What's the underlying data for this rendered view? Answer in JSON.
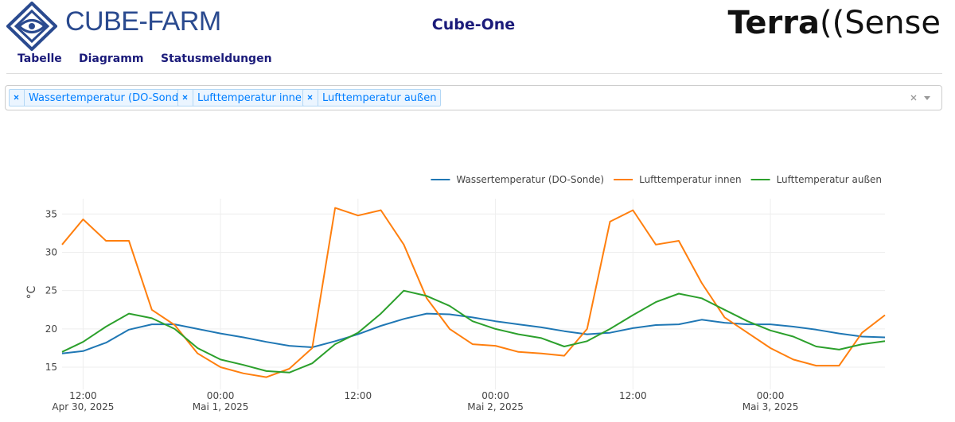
{
  "header": {
    "logo": "CUBE-FARM",
    "title": "Cube-One",
    "brand_bold": "Terra",
    "brand_rest": "((Sense"
  },
  "tabs": [
    "Tabelle",
    "Diagramm",
    "Statusmeldungen"
  ],
  "active_tab": 1,
  "filter": {
    "chips": [
      "Wassertemperatur (DO-Sonde)",
      "Lufttemperatur innen",
      "Lufttemperatur außen"
    ]
  },
  "chart_data": {
    "type": "line",
    "y_label": "°C",
    "legend": "top-right",
    "grid": true,
    "x": [
      "2025-04-30T10:10",
      "2025-04-30T12:00",
      "2025-04-30T14:00",
      "2025-04-30T16:00",
      "2025-04-30T18:00",
      "2025-04-30T20:00",
      "2025-04-30T22:00",
      "2025-05-01T00:00",
      "2025-05-01T02:00",
      "2025-05-01T04:00",
      "2025-05-01T06:00",
      "2025-05-01T08:00",
      "2025-05-01T10:00",
      "2025-05-01T12:00",
      "2025-05-01T14:00",
      "2025-05-01T16:00",
      "2025-05-01T18:00",
      "2025-05-01T20:00",
      "2025-05-01T22:00",
      "2025-05-02T00:00",
      "2025-05-02T02:00",
      "2025-05-02T04:00",
      "2025-05-02T06:00",
      "2025-05-02T08:00",
      "2025-05-02T10:00",
      "2025-05-02T12:00",
      "2025-05-02T14:00",
      "2025-05-02T16:00",
      "2025-05-02T18:00",
      "2025-05-02T20:00",
      "2025-05-02T22:00",
      "2025-05-03T00:00",
      "2025-05-03T02:00",
      "2025-05-03T04:00",
      "2025-05-03T06:00",
      "2025-05-03T08:00",
      "2025-05-03T10:00"
    ],
    "series": [
      {
        "name": "Wassertemperatur (DO-Sonde)",
        "color": "#1f77b4",
        "values": [
          16.8,
          17.1,
          18.2,
          19.9,
          20.6,
          20.6,
          20.0,
          19.4,
          18.9,
          18.3,
          17.8,
          17.6,
          18.4,
          19.3,
          20.4,
          21.3,
          22.0,
          21.9,
          21.5,
          21.0,
          20.6,
          20.2,
          19.7,
          19.3,
          19.5,
          20.1,
          20.5,
          20.6,
          21.2,
          20.8,
          20.6,
          20.6,
          20.3,
          19.9,
          19.4,
          19.0,
          18.9
        ]
      },
      {
        "name": "Lufttemperatur innen",
        "color": "#ff7f0e",
        "values": [
          31,
          34.3,
          31.5,
          31.5,
          22.5,
          20.5,
          16.8,
          15,
          14.2,
          13.7,
          14.8,
          17.5,
          35.8,
          34.8,
          35.5,
          31,
          24,
          20,
          18,
          17.8,
          17,
          16.8,
          16.5,
          20,
          34,
          35.5,
          31,
          31.5,
          26,
          21.5,
          19.5,
          17.5,
          16,
          15.2,
          15.2,
          19.5,
          21.8
        ]
      },
      {
        "name": "Lufttemperatur außen",
        "color": "#2ca02c",
        "values": [
          17,
          18.3,
          20.3,
          22,
          21.4,
          20,
          17.5,
          16,
          15.3,
          14.5,
          14.3,
          15.5,
          18,
          19.5,
          22,
          25,
          24.3,
          23,
          21,
          20,
          19.3,
          18.8,
          17.7,
          18.4,
          20,
          21.8,
          23.5,
          24.6,
          24,
          22.5,
          21,
          19.8,
          19,
          17.7,
          17.3,
          18,
          18.4
        ]
      }
    ],
    "xlim": [
      "2025-04-30T10:10",
      "2025-05-03T10:00"
    ],
    "xticks": [
      {
        "value": "2025-04-30T12:00",
        "label": "12:00\nApr 30, 2025"
      },
      {
        "value": "2025-05-01T00:00",
        "label": "00:00\nMai 1, 2025"
      },
      {
        "value": "2025-05-01T12:00",
        "label": "12:00"
      },
      {
        "value": "2025-05-02T00:00",
        "label": "00:00\nMai 2, 2025"
      },
      {
        "value": "2025-05-02T12:00",
        "label": "12:00"
      },
      {
        "value": "2025-05-03T00:00",
        "label": "00:00\nMai 3, 2025"
      }
    ],
    "ylim": [
      12.1,
      37
    ],
    "yticks": [
      15,
      20,
      25,
      30,
      35
    ]
  }
}
